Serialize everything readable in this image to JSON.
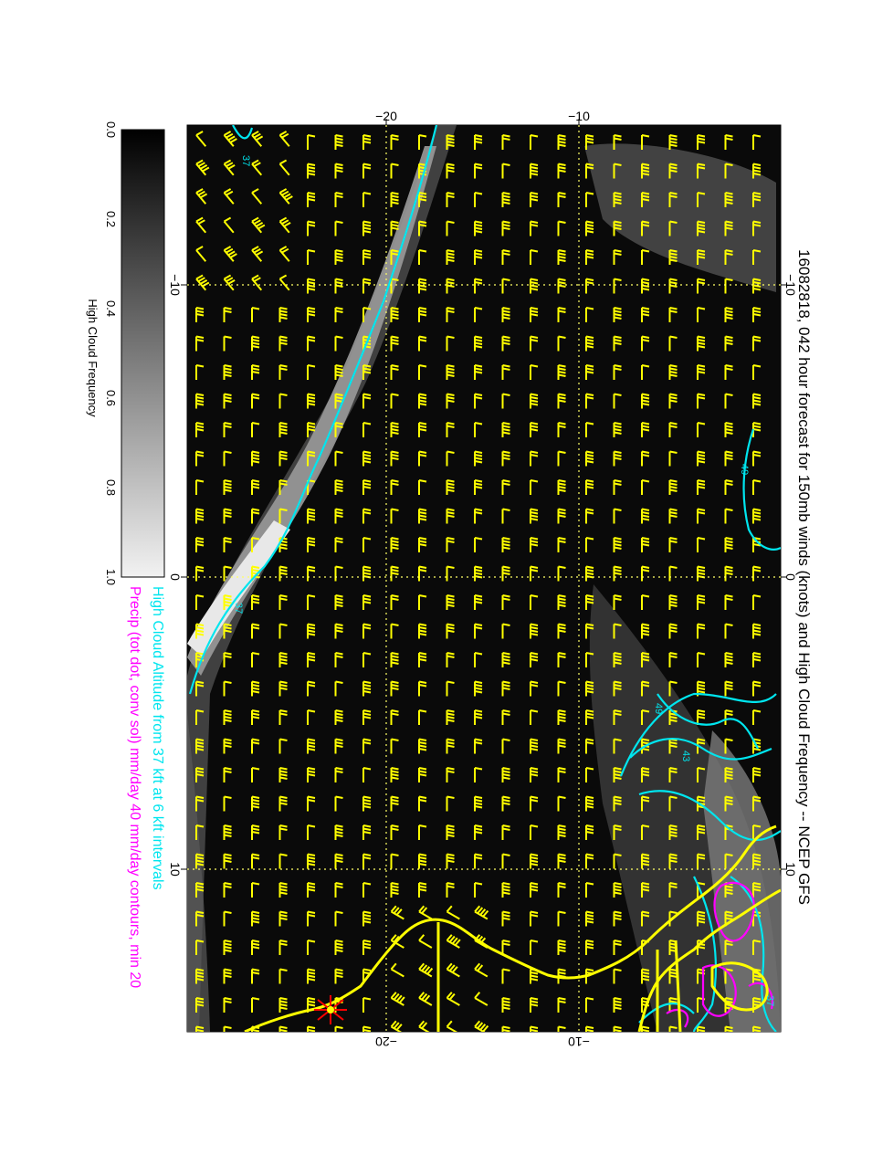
{
  "title": "16082818, 042 hour forecast for 150mb winds (knots) and High Cloud Frequency -- NCEP GFS",
  "caption_line1": "High Cloud Altitude from 37 kft at 6 kft intervals",
  "caption_line2": "Precip (tot dot, conv sol) mm/day 40 mm/day contours, min 20",
  "colorbar": {
    "label": "High Cloud Frequency",
    "ticks": [
      "0.0",
      "0.2",
      "0.4",
      "0.6",
      "0.8",
      "1.0"
    ]
  },
  "axes": {
    "top_ticks": [
      "−20",
      "−10"
    ],
    "bottom_ticks": [
      "−20",
      "−10"
    ],
    "left_ticks": [
      "−10",
      "0",
      "10"
    ],
    "right_ticks": [
      "−10",
      "0",
      "10"
    ]
  },
  "contour_labels": [
    "37",
    "37",
    "49",
    "49",
    "43",
    "37"
  ],
  "colors": {
    "background": "#0a0a0a",
    "barb": "#ffff00",
    "cloud_altitude_contour": "#00e5ee",
    "precip_contour": "#ff00ff",
    "coast": "#ffff00",
    "grid": "#ffff66",
    "station_marker": "#ff0000"
  },
  "legend": {
    "cloud_color_name": "cyan",
    "precip_color_name": "magenta"
  }
}
